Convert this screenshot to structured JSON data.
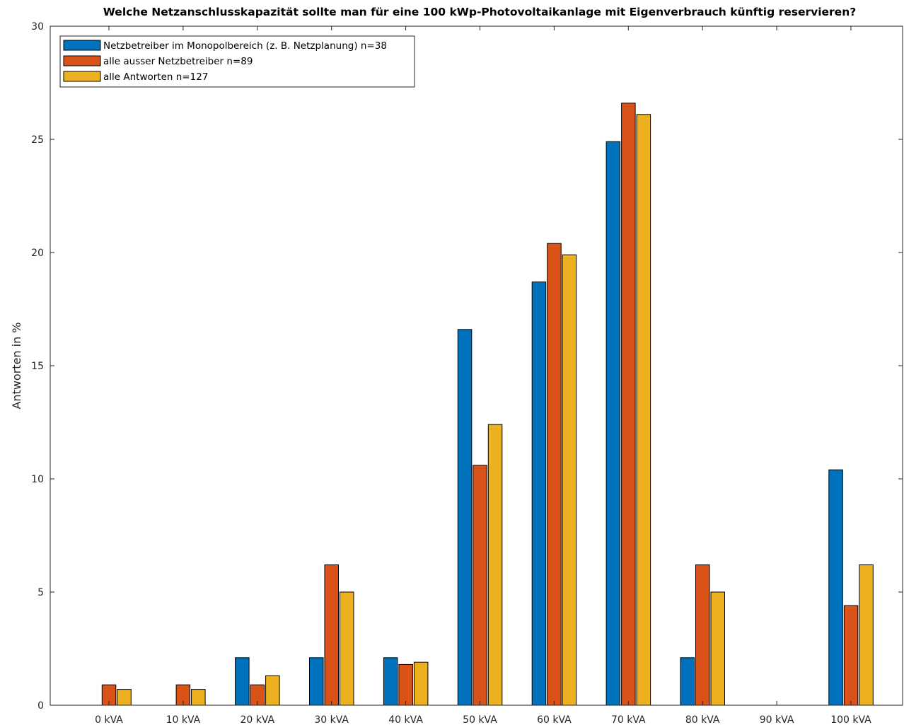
{
  "chart_data": {
    "type": "bar",
    "title": "Welche Netzanschlusskapazität sollte man für eine 100 kWp-Photovoltaikanlage mit Eigenverbrauch künftig reservieren?",
    "xlabel": "",
    "ylabel": "Antworten in %",
    "ylim": [
      0,
      30
    ],
    "yticks": [
      "0",
      "5",
      "10",
      "15",
      "20",
      "25",
      "30"
    ],
    "categories": [
      "0 kVA",
      "10 kVA",
      "20 kVA",
      "30 kVA",
      "40 kVA",
      "50 kVA",
      "60 kVA",
      "70 kVA",
      "80 kVA",
      "90 kVA",
      "100 kVA"
    ],
    "series": [
      {
        "name": "Netzbetreiber im Monopolbereich (z. B. Netzplanung) n=38",
        "color": "#0072BD",
        "values": [
          0,
          0,
          2.1,
          2.1,
          2.1,
          16.6,
          18.7,
          24.9,
          2.1,
          0,
          10.4
        ]
      },
      {
        "name": "alle ausser Netzbetreiber n=89",
        "color": "#D95319",
        "values": [
          0.9,
          0.9,
          0.9,
          6.2,
          1.8,
          10.6,
          20.4,
          26.6,
          6.2,
          0,
          4.4
        ]
      },
      {
        "name": "alle Antworten n=127",
        "color": "#EDB120",
        "values": [
          0.7,
          0.7,
          1.3,
          5.0,
          1.9,
          12.4,
          19.9,
          26.1,
          5.0,
          0,
          6.2
        ]
      }
    ],
    "legend_position": "top-left",
    "grid": false
  }
}
